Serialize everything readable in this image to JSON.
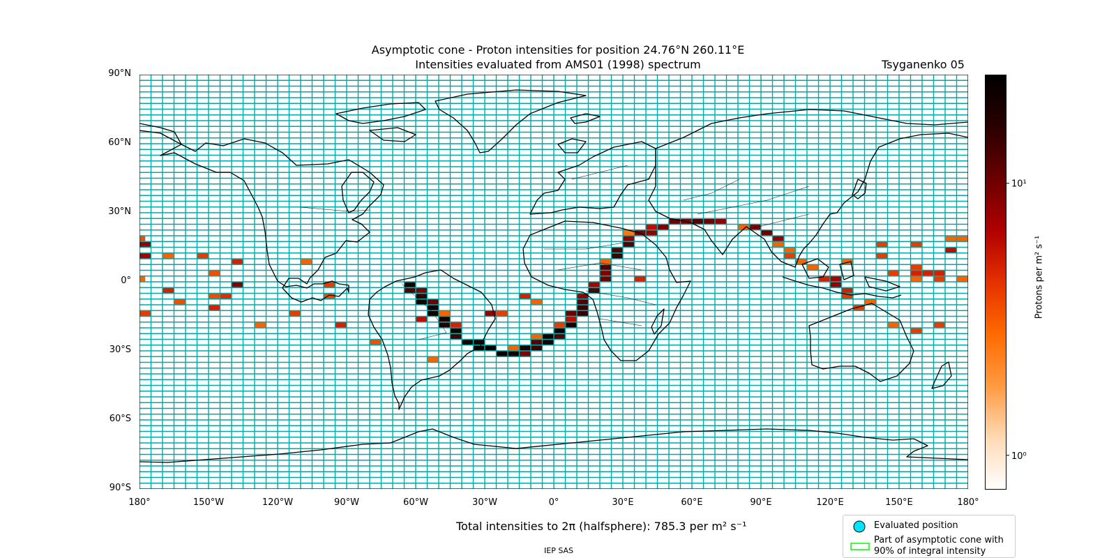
{
  "chart_data": {
    "type": "heatmap",
    "title": "Asymptotic cone - Proton intensities for position 24.76°N 260.11°E",
    "subtitle": "Intensities evaluated from AMS01 (1998) spectrum",
    "model_label": "Tsyganenko 05",
    "x_ticks": [
      "180°",
      "150°W",
      "120°W",
      "90°W",
      "60°W",
      "30°W",
      "0°",
      "30°E",
      "60°E",
      "90°E",
      "120°E",
      "150°E",
      "180°"
    ],
    "y_ticks": [
      "90°N",
      "60°N",
      "30°N",
      "0°",
      "30°S",
      "60°S",
      "90°S"
    ],
    "xlim": [
      -180,
      180
    ],
    "ylim": [
      -90,
      90
    ],
    "grid": {
      "lon_step": 5,
      "lat_step": 2.5
    },
    "grid_color": "#00a8a8",
    "colorbar": {
      "label": "Protons per m² s⁻¹",
      "scale": "log",
      "range": [
        0.75,
        25
      ],
      "ticks": [
        {
          "value": 1,
          "label": "10⁰"
        },
        {
          "value": 10,
          "label": "10¹"
        }
      ],
      "colormap": [
        "#ffffff",
        "#ffd9b3",
        "#ff9a40",
        "#ff6a00",
        "#e53000",
        "#b00000",
        "#6a0000",
        "#2a0000",
        "#000000"
      ]
    },
    "total_label": "Total intensities to 2π (halfsphere): 785.3 per m² s⁻¹",
    "legend": [
      {
        "label": "Evaluated position",
        "marker": "circle",
        "color": "#00e5ff"
      },
      {
        "label": "Part of asymptotic cone with\n90% of integral intensity",
        "marker": "rect",
        "color": "#00ff00"
      }
    ],
    "cells": [
      [
        -180,
        18.8,
        3.5
      ],
      [
        -177.5,
        16.3,
        8
      ],
      [
        -177.5,
        11.3,
        7
      ],
      [
        -180,
        1.3,
        3
      ],
      [
        -177.5,
        -13.7,
        4
      ],
      [
        -167.5,
        11.3,
        3
      ],
      [
        -167.5,
        -3.7,
        5
      ],
      [
        -162.5,
        -8.7,
        3.5
      ],
      [
        -152.5,
        11.3,
        4
      ],
      [
        -147.5,
        3.8,
        3.5
      ],
      [
        -147.5,
        -6.2,
        3.5
      ],
      [
        -147.5,
        -11.2,
        5
      ],
      [
        -142.5,
        -6.2,
        4.5
      ],
      [
        -137.5,
        8.8,
        5
      ],
      [
        -137.5,
        -1.2,
        9
      ],
      [
        -127.5,
        -18.7,
        3
      ],
      [
        -112.5,
        -13.7,
        4
      ],
      [
        -107.5,
        8.8,
        3
      ],
      [
        -97.5,
        -1.2,
        4
      ],
      [
        -97.5,
        -6.2,
        3.5
      ],
      [
        -92.5,
        -18.7,
        5
      ],
      [
        -77.5,
        -26.2,
        3.5
      ],
      [
        -62.5,
        -1.2,
        20
      ],
      [
        -62.5,
        -3.7,
        12
      ],
      [
        -57.5,
        -3.7,
        9
      ],
      [
        -57.5,
        -6.2,
        15
      ],
      [
        -57.5,
        -8.7,
        20
      ],
      [
        -57.5,
        -16.2,
        6
      ],
      [
        -52.5,
        -8.7,
        10
      ],
      [
        -52.5,
        -11.2,
        20
      ],
      [
        -52.5,
        -13.7,
        22
      ],
      [
        -52.5,
        -33.7,
        3
      ],
      [
        -47.5,
        -13.7,
        3
      ],
      [
        -47.5,
        -16.2,
        20
      ],
      [
        -47.5,
        -18.7,
        18
      ],
      [
        -42.5,
        -18.7,
        5
      ],
      [
        -42.5,
        -21.2,
        20
      ],
      [
        -42.5,
        -23.7,
        14
      ],
      [
        -37.5,
        -26.2,
        20
      ],
      [
        -32.5,
        -26.2,
        20
      ],
      [
        -32.5,
        -28.7,
        22
      ],
      [
        -27.5,
        -28.7,
        25
      ],
      [
        -27.5,
        -13.7,
        8
      ],
      [
        -22.5,
        -13.7,
        4
      ],
      [
        -22.5,
        -31.2,
        22
      ],
      [
        -17.5,
        -28.7,
        3
      ],
      [
        -17.5,
        -31.2,
        20
      ],
      [
        -12.5,
        -28.7,
        18
      ],
      [
        -12.5,
        -31.2,
        9
      ],
      [
        -12.5,
        -6.2,
        5
      ],
      [
        -7.5,
        -8.7,
        3
      ],
      [
        -7.5,
        -23.7,
        3
      ],
      [
        -7.5,
        -26.2,
        12
      ],
      [
        -7.5,
        -28.7,
        14
      ],
      [
        -2.5,
        -23.7,
        22
      ],
      [
        -2.5,
        -26.2,
        20
      ],
      [
        2.5,
        -21.2,
        22
      ],
      [
        2.5,
        -23.7,
        12
      ],
      [
        2.5,
        -18.7,
        4
      ],
      [
        7.5,
        -16.2,
        6
      ],
      [
        7.5,
        -18.7,
        20
      ],
      [
        7.5,
        -13.7,
        10
      ],
      [
        12.5,
        -13.7,
        15
      ],
      [
        12.5,
        -11.2,
        14
      ],
      [
        12.5,
        -6.2,
        8
      ],
      [
        12.5,
        -8.7,
        12
      ],
      [
        17.5,
        -1.2,
        7
      ],
      [
        17.5,
        -3.7,
        12
      ],
      [
        22.5,
        1.3,
        10
      ],
      [
        22.5,
        3.8,
        9
      ],
      [
        22.5,
        6.3,
        12
      ],
      [
        22.5,
        8.8,
        3
      ],
      [
        27.5,
        11.3,
        14
      ],
      [
        27.5,
        13.8,
        12
      ],
      [
        32.5,
        16.3,
        12
      ],
      [
        32.5,
        18.8,
        8
      ],
      [
        32.5,
        21.3,
        2.5
      ],
      [
        37.5,
        1.3,
        5
      ],
      [
        37.5,
        21.3,
        9
      ],
      [
        42.5,
        23.8,
        6
      ],
      [
        42.5,
        21.3,
        8
      ],
      [
        47.5,
        23.8,
        9
      ],
      [
        52.5,
        26.3,
        10
      ],
      [
        57.5,
        26.3,
        9
      ],
      [
        62.5,
        26.3,
        12
      ],
      [
        67.5,
        26.3,
        10
      ],
      [
        72.5,
        26.3,
        8
      ],
      [
        82.5,
        23.8,
        3
      ],
      [
        87.5,
        23.8,
        9
      ],
      [
        92.5,
        21.3,
        10
      ],
      [
        97.5,
        18.8,
        8
      ],
      [
        97.5,
        16.3,
        3
      ],
      [
        102.5,
        13.8,
        3
      ],
      [
        102.5,
        11.3,
        4
      ],
      [
        107.5,
        8.8,
        3
      ],
      [
        112.5,
        6.3,
        3
      ],
      [
        117.5,
        1.3,
        5
      ],
      [
        122.5,
        1.3,
        7
      ],
      [
        122.5,
        -1.2,
        8
      ],
      [
        127.5,
        -3.7,
        5
      ],
      [
        127.5,
        -6.2,
        4
      ],
      [
        127.5,
        8.8,
        3
      ],
      [
        132.5,
        -11.2,
        4
      ],
      [
        137.5,
        -8.7,
        3
      ],
      [
        142.5,
        16.3,
        4
      ],
      [
        142.5,
        11.3,
        4
      ],
      [
        147.5,
        3.8,
        4
      ],
      [
        147.5,
        -18.7,
        3
      ],
      [
        157.5,
        16.3,
        4
      ],
      [
        157.5,
        6.3,
        4
      ],
      [
        157.5,
        3.8,
        5
      ],
      [
        157.5,
        1.3,
        3
      ],
      [
        162.5,
        3.8,
        5
      ],
      [
        167.5,
        3.8,
        5
      ],
      [
        167.5,
        1.3,
        4
      ],
      [
        172.5,
        18.8,
        3
      ],
      [
        172.5,
        13.8,
        6
      ],
      [
        177.5,
        18.8,
        3
      ],
      [
        177.5,
        1.3,
        3
      ],
      [
        157.5,
        -21.2,
        4
      ],
      [
        167.5,
        -18.7,
        4
      ]
    ]
  }
}
